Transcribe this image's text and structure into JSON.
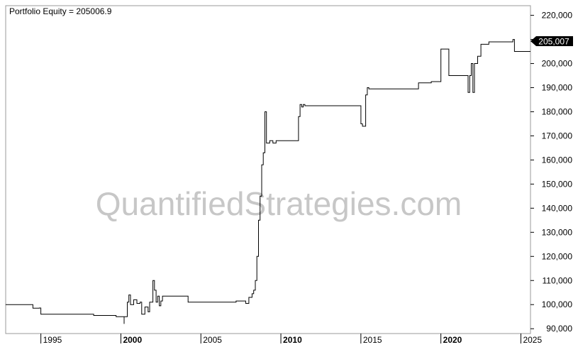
{
  "chart_data": {
    "type": "line",
    "title": "Portfolio Equity = 205006.9",
    "watermark": "QuantifiedStrategies.com",
    "ylim": [
      88000,
      224000
    ],
    "xlim": [
      1992.8,
      2025.6
    ],
    "y_ticks": [
      {
        "value": 90000,
        "label": "90,000"
      },
      {
        "value": 100000,
        "label": "100,000"
      },
      {
        "value": 110000,
        "label": "110,000"
      },
      {
        "value": 120000,
        "label": "120,000"
      },
      {
        "value": 130000,
        "label": "130,000"
      },
      {
        "value": 140000,
        "label": "140,000"
      },
      {
        "value": 150000,
        "label": "150,000"
      },
      {
        "value": 160000,
        "label": "160,000"
      },
      {
        "value": 170000,
        "label": "170,000"
      },
      {
        "value": 180000,
        "label": "180,000"
      },
      {
        "value": 190000,
        "label": "190,000"
      },
      {
        "value": 200000,
        "label": "200,000"
      },
      {
        "value": 210000,
        "label": "210,000"
      },
      {
        "value": 220000,
        "label": "220,000"
      }
    ],
    "x_ticks": [
      {
        "value": 1995,
        "label": "1995",
        "bold": false
      },
      {
        "value": 2000,
        "label": "2000",
        "bold": true
      },
      {
        "value": 2005,
        "label": "2005",
        "bold": false
      },
      {
        "value": 2010,
        "label": "2010",
        "bold": true
      },
      {
        "value": 2015,
        "label": "2015",
        "bold": false
      },
      {
        "value": 2020,
        "label": "2020",
        "bold": true
      },
      {
        "value": 2025,
        "label": "2025",
        "bold": false
      }
    ],
    "last_value_label": "205,007",
    "series": [
      {
        "x": [
          1992.8,
          1994.4,
          1994.5,
          1994.5,
          1994.9,
          1995.0,
          1998.2,
          1998.3,
          1999.7,
          1999.7,
          2000.0,
          2000.2,
          2000.2,
          2000.4,
          2000.5,
          2000.6,
          2000.8,
          2001.0,
          2001.2,
          2001.3,
          2001.5,
          2001.7,
          2001.8,
          2002.0,
          2002.1,
          2002.2,
          2002.3,
          2002.4,
          2002.5,
          2002.6,
          2002.8,
          2003.0,
          2004.0,
          2004.2,
          2005.0,
          2006.0,
          2007.2,
          2007.5,
          2007.8,
          2008.0,
          2008.2,
          2008.3,
          2008.4,
          2008.5,
          2008.6,
          2008.7,
          2008.8,
          2008.9,
          2009.0,
          2009.1,
          2009.2,
          2009.3,
          2009.5,
          2009.7,
          2010.0,
          2010.5,
          2011.0,
          2011.1,
          2011.2,
          2011.3,
          2011.4,
          2011.5,
          2012.0,
          2014.0,
          2014.9,
          2015.0,
          2015.1,
          2015.3,
          2015.4,
          2015.5,
          2016.0,
          2018.0,
          2018.5,
          2018.6,
          2019.0,
          2019.3,
          2019.4,
          2019.5,
          2019.7,
          2019.8,
          2020.0,
          2020.5,
          2021.0,
          2021.4,
          2021.5,
          2021.6,
          2021.7,
          2021.8,
          2021.9,
          2022.0,
          2022.1,
          2022.3,
          2022.5,
          2023.0,
          2024.0,
          2024.4,
          2024.5,
          2024.6,
          2025.6
        ],
        "y": [
          100000,
          100000,
          99000,
          98500,
          98600,
          96000,
          96000,
          95500,
          95500,
          95000,
          95000,
          92000,
          95000,
          101000,
          104000,
          100000,
          102000,
          100500,
          101000,
          96000,
          99000,
          97000,
          101000,
          110000,
          106000,
          101000,
          103500,
          99500,
          101500,
          103500,
          103500,
          103500,
          103500,
          101000,
          101000,
          101000,
          101500,
          101500,
          100500,
          103000,
          104500,
          106000,
          110000,
          120000,
          135000,
          145000,
          158000,
          163000,
          180000,
          167000,
          167000,
          168000,
          167000,
          168000,
          168000,
          168000,
          168000,
          178000,
          183000,
          182000,
          183000,
          182500,
          182500,
          182500,
          182500,
          175000,
          174000,
          187000,
          190000,
          189500,
          189500,
          189500,
          189500,
          192000,
          192000,
          192000,
          192500,
          192500,
          192500,
          192500,
          206000,
          195000,
          195000,
          195000,
          195000,
          195000,
          188000,
          195000,
          200000,
          188000,
          200000,
          203000,
          208000,
          209000,
          209000,
          209000,
          210000,
          205000,
          205007
        ],
        "name": ""
      }
    ]
  }
}
